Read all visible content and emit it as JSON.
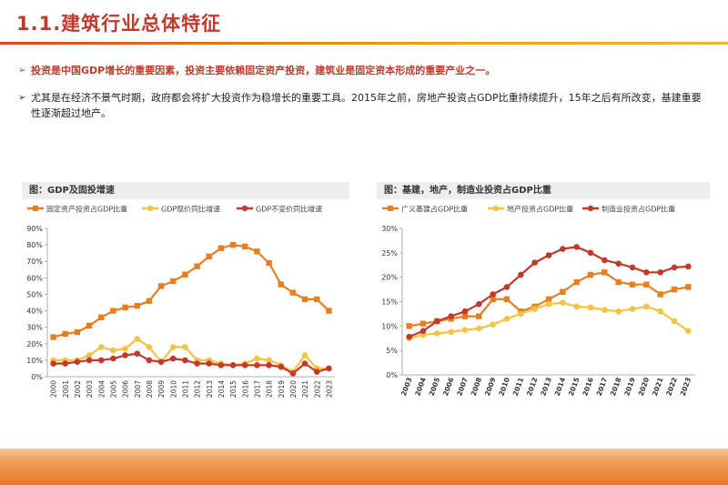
{
  "slide": {
    "title": "1.1.建筑行业总体特征",
    "bullet1": "投资是中国GDP增长的重要因素，投资主要依赖固定资产投资，建筑业是固定资本形成的重要产业之一。",
    "bullet2": "尤其是在经济不景气时期，政府都会将扩大投资作为稳增长的重要工具。2015年之前，房地产投资占GDP比重持续提升，15年之后有所改变，基建重要性逐渐超过地产。",
    "arrow_icon": "➢"
  },
  "chart_titles": [
    "图：GDP及固投增速",
    "图：基建，地产，制造业投资占GDP比重"
  ],
  "chart_data": [
    {
      "type": "line",
      "title": "图：GDP及固投增速",
      "x": [
        "2000",
        "2001",
        "2002",
        "2003",
        "2004",
        "2005",
        "2006",
        "2007",
        "2008",
        "2009",
        "2010",
        "2011",
        "2012",
        "2013",
        "2014",
        "2015",
        "2016",
        "2017",
        "2018",
        "2019",
        "2020",
        "2021",
        "2022",
        "2023"
      ],
      "ylim": [
        0,
        0.9
      ],
      "yticks": [
        "0%",
        "10%",
        "20%",
        "30%",
        "40%",
        "50%",
        "60%",
        "70%",
        "80%",
        "90%"
      ],
      "legend_position": "top",
      "series": [
        {
          "name": "固定资产投资占GDP比重",
          "color": "#e67e22",
          "marker": "square",
          "values": [
            0.24,
            0.26,
            0.27,
            0.31,
            0.36,
            0.4,
            0.42,
            0.43,
            0.46,
            0.55,
            0.58,
            0.62,
            0.67,
            0.73,
            0.78,
            0.8,
            0.79,
            0.76,
            0.69,
            0.56,
            0.51,
            0.47,
            0.47,
            0.4
          ]
        },
        {
          "name": "GDP现价同比增速",
          "color": "#f5c242",
          "marker": "circle",
          "values": [
            0.1,
            0.1,
            0.1,
            0.13,
            0.18,
            0.16,
            0.17,
            0.23,
            0.18,
            0.09,
            0.18,
            0.18,
            0.1,
            0.1,
            0.08,
            0.07,
            0.08,
            0.11,
            0.1,
            0.07,
            0.03,
            0.13,
            0.05,
            0.05
          ]
        },
        {
          "name": "GDP不变价同比增速",
          "color": "#c0392b",
          "marker": "circle",
          "values": [
            0.08,
            0.08,
            0.09,
            0.1,
            0.1,
            0.11,
            0.13,
            0.14,
            0.1,
            0.09,
            0.11,
            0.1,
            0.08,
            0.08,
            0.07,
            0.07,
            0.07,
            0.07,
            0.07,
            0.06,
            0.02,
            0.08,
            0.03,
            0.05
          ]
        }
      ]
    },
    {
      "type": "line",
      "title": "图：基建，地产，制造业投资占GDP比重",
      "x": [
        "2003",
        "2004",
        "2005",
        "2006",
        "2007",
        "2008",
        "2009",
        "2010",
        "2011",
        "2012",
        "2013",
        "2014",
        "2015",
        "2016",
        "2017",
        "2018",
        "2019",
        "2020",
        "2021",
        "2022",
        "2023"
      ],
      "ylim": [
        0,
        0.3
      ],
      "yticks": [
        "0%",
        "5%",
        "10%",
        "15%",
        "20%",
        "25%",
        "30%"
      ],
      "legend_position": "top",
      "series": [
        {
          "name": "广义基建占GDP比重",
          "color": "#e67e22",
          "marker": "square",
          "values": [
            0.1,
            0.105,
            0.11,
            0.115,
            0.12,
            0.12,
            0.155,
            0.155,
            0.13,
            0.14,
            0.155,
            0.17,
            0.19,
            0.205,
            0.21,
            0.19,
            0.185,
            0.185,
            0.165,
            0.175,
            0.18
          ]
        },
        {
          "name": "地产投资占GDP比重",
          "color": "#f5c242",
          "marker": "circle",
          "values": [
            0.075,
            0.082,
            0.085,
            0.088,
            0.092,
            0.095,
            0.103,
            0.115,
            0.125,
            0.135,
            0.145,
            0.148,
            0.14,
            0.138,
            0.133,
            0.13,
            0.135,
            0.14,
            0.13,
            0.11,
            0.09
          ]
        },
        {
          "name": "制造业投资占GDP比重",
          "color": "#c0392b",
          "marker": "circle",
          "values": [
            0.078,
            0.09,
            0.11,
            0.12,
            0.13,
            0.145,
            0.165,
            0.18,
            0.205,
            0.23,
            0.245,
            0.258,
            0.262,
            0.25,
            0.235,
            0.228,
            0.22,
            0.21,
            0.21,
            0.22,
            0.222
          ]
        }
      ]
    }
  ]
}
